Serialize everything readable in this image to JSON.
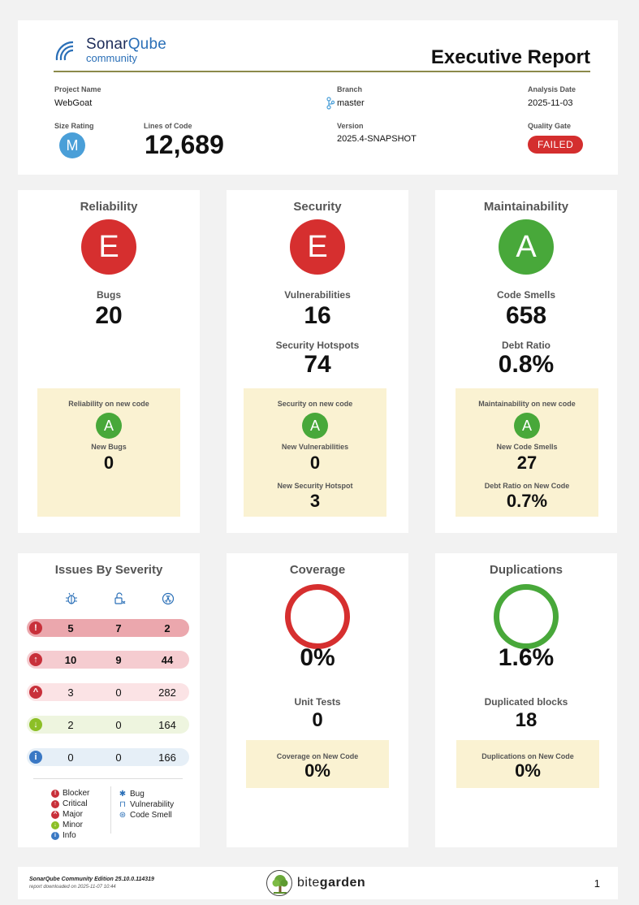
{
  "header": {
    "logo_main_a": "Sonar",
    "logo_main_b": "Qube",
    "logo_sub": "community",
    "title": "Executive Report",
    "project_name_label": "Project Name",
    "project_name": "WebGoat",
    "branch_label": "Branch",
    "branch": "master",
    "analysis_date_label": "Analysis Date",
    "analysis_date": "2025-11-03",
    "size_rating_label": "Size Rating",
    "size_rating": "M",
    "loc_label": "Lines of Code",
    "loc": "12,689",
    "version_label": "Version",
    "version": "2025.4-SNAPSHOT",
    "quality_gate_label": "Quality Gate",
    "quality_gate": "FAILED"
  },
  "reliability": {
    "title": "Reliability",
    "grade": "E",
    "bugs_label": "Bugs",
    "bugs": "20",
    "new_label": "Reliability on new code",
    "new_grade": "A",
    "new_bugs_label": "New Bugs",
    "new_bugs": "0"
  },
  "security": {
    "title": "Security",
    "grade": "E",
    "vuln_label": "Vulnerabilities",
    "vuln": "16",
    "hotspots_label": "Security Hotspots",
    "hotspots": "74",
    "new_label": "Security on new code",
    "new_grade": "A",
    "new_vuln_label": "New Vulnerabilities",
    "new_vuln": "0",
    "new_hotspot_label": "New Security Hotspot",
    "new_hotspot": "3"
  },
  "maintainability": {
    "title": "Maintainability",
    "grade": "A",
    "smells_label": "Code Smells",
    "smells": "658",
    "debt_label": "Debt Ratio",
    "debt": "0.8%",
    "new_label": "Maintainability on new code",
    "new_grade": "A",
    "new_smells_label": "New Code Smells",
    "new_smells": "27",
    "new_debt_label": "Debt Ratio on New Code",
    "new_debt": "0.7%"
  },
  "severity": {
    "title": "Issues By Severity",
    "rows": [
      {
        "level": "Blocker",
        "bugs": "5",
        "vuln": "7",
        "smells": "2"
      },
      {
        "level": "Critical",
        "bugs": "10",
        "vuln": "9",
        "smells": "44"
      },
      {
        "level": "Major",
        "bugs": "3",
        "vuln": "0",
        "smells": "282"
      },
      {
        "level": "Minor",
        "bugs": "2",
        "vuln": "0",
        "smells": "164"
      },
      {
        "level": "Info",
        "bugs": "0",
        "vuln": "0",
        "smells": "166"
      }
    ],
    "legend_levels": [
      "Blocker",
      "Critical",
      "Major",
      "Minor",
      "Info"
    ],
    "legend_types": [
      "Bug",
      "Vulnerability",
      "Code Smell"
    ],
    "colors": {
      "blocker": "#c8303a",
      "critical": "#c8303a",
      "major": "#c8303a",
      "minor": "#8cbf26",
      "info": "#3a78c4"
    }
  },
  "coverage": {
    "title": "Coverage",
    "value": "0%",
    "unit_tests_label": "Unit Tests",
    "unit_tests": "0",
    "new_label": "Coverage on New Code",
    "new_value": "0%"
  },
  "duplications": {
    "title": "Duplications",
    "value": "1.6%",
    "blocks_label": "Duplicated blocks",
    "blocks": "18",
    "new_label": "Duplications on New Code",
    "new_value": "0%"
  },
  "footer": {
    "edition": "SonarQube Community Edition 25.10.0.114319",
    "downloaded": "report downloaded on 2025-11-07 10:44",
    "brand_a": "bite",
    "brand_b": "garden",
    "page": "1"
  }
}
